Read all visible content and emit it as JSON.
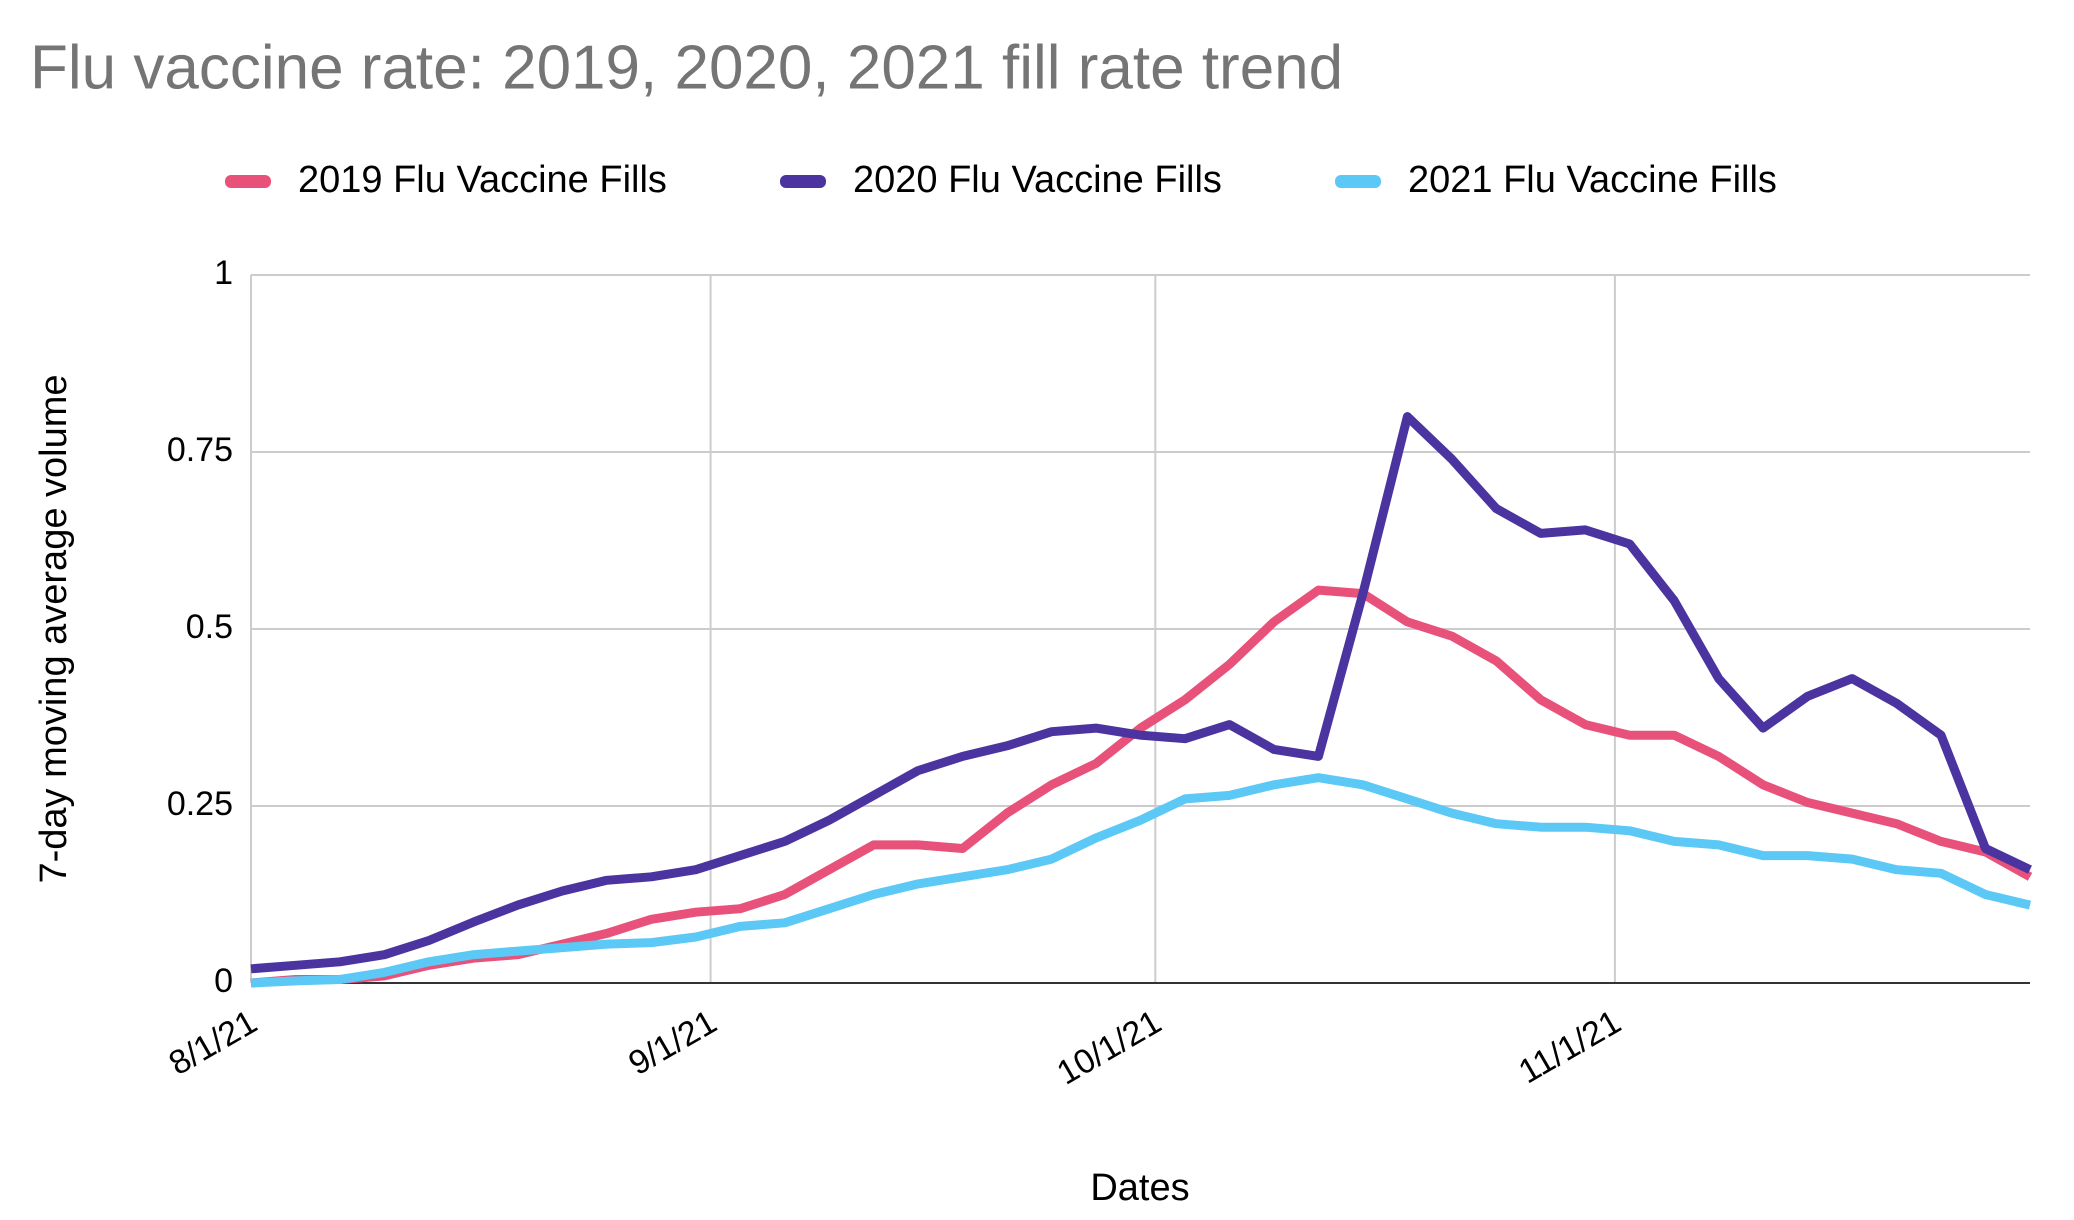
{
  "chart_data": {
    "type": "line",
    "title": "Flu vaccine rate: 2019, 2020, 2021 fill rate trend",
    "x_label": "Dates",
    "y_label": "7-day moving average volume",
    "x": [
      "8/1/21",
      "8/4/21",
      "8/7/21",
      "8/10/21",
      "8/13/21",
      "8/16/21",
      "8/19/21",
      "8/22/21",
      "8/25/21",
      "8/28/21",
      "8/31/21",
      "9/3/21",
      "9/6/21",
      "9/9/21",
      "9/12/21",
      "9/15/21",
      "9/18/21",
      "9/21/21",
      "9/24/21",
      "9/27/21",
      "9/30/21",
      "10/3/21",
      "10/6/21",
      "10/9/21",
      "10/12/21",
      "10/15/21",
      "10/18/21",
      "10/21/21",
      "10/24/21",
      "10/27/21",
      "10/30/21",
      "11/2/21",
      "11/5/21",
      "11/8/21",
      "11/11/21",
      "11/14/21",
      "11/17/21",
      "11/20/21",
      "11/23/21",
      "11/26/21",
      "11/29/21"
    ],
    "series": [
      {
        "name": "2019 Flu Vaccine Fills",
        "color": "#e8527a",
        "values": [
          0.0,
          0.005,
          0.005,
          0.01,
          0.025,
          0.035,
          0.04,
          0.055,
          0.07,
          0.09,
          0.1,
          0.105,
          0.125,
          0.16,
          0.195,
          0.195,
          0.19,
          0.24,
          0.28,
          0.31,
          0.36,
          0.4,
          0.45,
          0.51,
          0.555,
          0.55,
          0.51,
          0.49,
          0.455,
          0.4,
          0.365,
          0.35,
          0.35,
          0.32,
          0.28,
          0.255,
          0.24,
          0.225,
          0.2,
          0.185,
          0.15
        ]
      },
      {
        "name": "2020 Flu Vaccine Fills",
        "color": "#4b34a0",
        "values": [
          0.02,
          0.025,
          0.03,
          0.04,
          0.06,
          0.086,
          0.11,
          0.13,
          0.145,
          0.15,
          0.16,
          0.18,
          0.2,
          0.23,
          0.265,
          0.3,
          0.32,
          0.335,
          0.355,
          0.36,
          0.35,
          0.345,
          0.365,
          0.33,
          0.32,
          0.55,
          0.8,
          0.74,
          0.67,
          0.635,
          0.64,
          0.62,
          0.54,
          0.43,
          0.36,
          0.405,
          0.43,
          0.395,
          0.35,
          0.19,
          0.16
        ]
      },
      {
        "name": "2021 Flu Vaccine Fills",
        "color": "#5bc8f5",
        "values": [
          0.0,
          0.003,
          0.005,
          0.015,
          0.03,
          0.04,
          0.045,
          0.05,
          0.055,
          0.057,
          0.065,
          0.08,
          0.085,
          0.105,
          0.125,
          0.14,
          0.15,
          0.16,
          0.175,
          0.205,
          0.23,
          0.26,
          0.265,
          0.28,
          0.29,
          0.28,
          0.26,
          0.24,
          0.225,
          0.22,
          0.22,
          0.215,
          0.2,
          0.195,
          0.18,
          0.18,
          0.175,
          0.16,
          0.155,
          0.125,
          0.11
        ]
      }
    ],
    "xlim": [
      "8/1/21",
      "11/29/21"
    ],
    "xticks": [
      "8/1/21",
      "9/1/21",
      "10/1/21",
      "11/1/21"
    ],
    "ylim": [
      0,
      1
    ],
    "yticks": [
      0,
      0.25,
      0.5,
      0.75,
      1
    ],
    "grid": true
  }
}
